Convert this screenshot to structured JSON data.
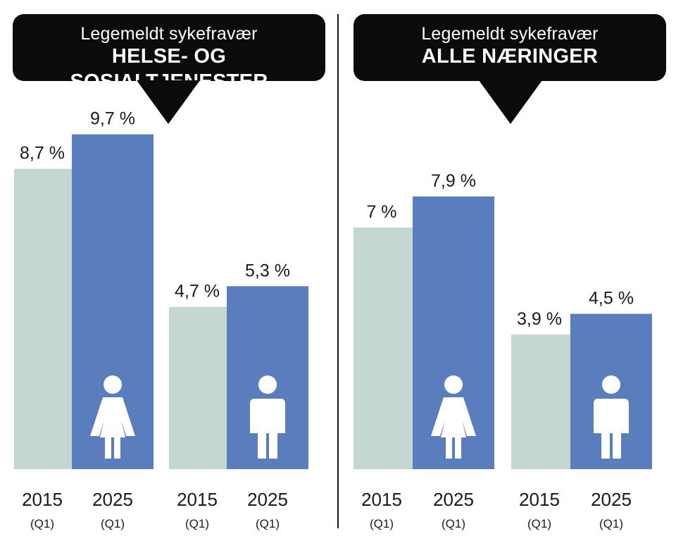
{
  "colors": {
    "year_2015": "#c3d6cf",
    "year_2025": "#5a7dbd",
    "header_bg": "#0b0b0b",
    "icon": "#ffffff"
  },
  "chart_data": [
    {
      "type": "bar",
      "subtitle": "Legemeldt sykefravær",
      "title": "HELSE- OG SOSIALTJENESTER",
      "groups": [
        {
          "gender_icon": "female-icon",
          "bars": [
            {
              "year": "2015",
              "period": "(Q1)",
              "value": 8.7,
              "label": "8,7 %"
            },
            {
              "year": "2025",
              "period": "(Q1)",
              "value": 9.7,
              "label": "9,7 %"
            }
          ]
        },
        {
          "gender_icon": "male-icon",
          "bars": [
            {
              "year": "2015",
              "period": "(Q1)",
              "value": 4.7,
              "label": "4,7 %"
            },
            {
              "year": "2025",
              "period": "(Q1)",
              "value": 5.3,
              "label": "5,3 %"
            }
          ]
        }
      ],
      "ylim": [
        0,
        10
      ]
    },
    {
      "type": "bar",
      "subtitle": "Legemeldt sykefravær",
      "title": "ALLE NÆRINGER",
      "groups": [
        {
          "gender_icon": "female-icon",
          "bars": [
            {
              "year": "2015",
              "period": "(Q1)",
              "value": 7.0,
              "label": "7 %"
            },
            {
              "year": "2025",
              "period": "(Q1)",
              "value": 7.9,
              "label": "7,9 %"
            }
          ]
        },
        {
          "gender_icon": "male-icon",
          "bars": [
            {
              "year": "2015",
              "period": "(Q1)",
              "value": 3.9,
              "label": "3,9 %"
            },
            {
              "year": "2025",
              "period": "(Q1)",
              "value": 4.5,
              "label": "4,5 %"
            }
          ]
        }
      ],
      "ylim": [
        0,
        10
      ]
    }
  ]
}
